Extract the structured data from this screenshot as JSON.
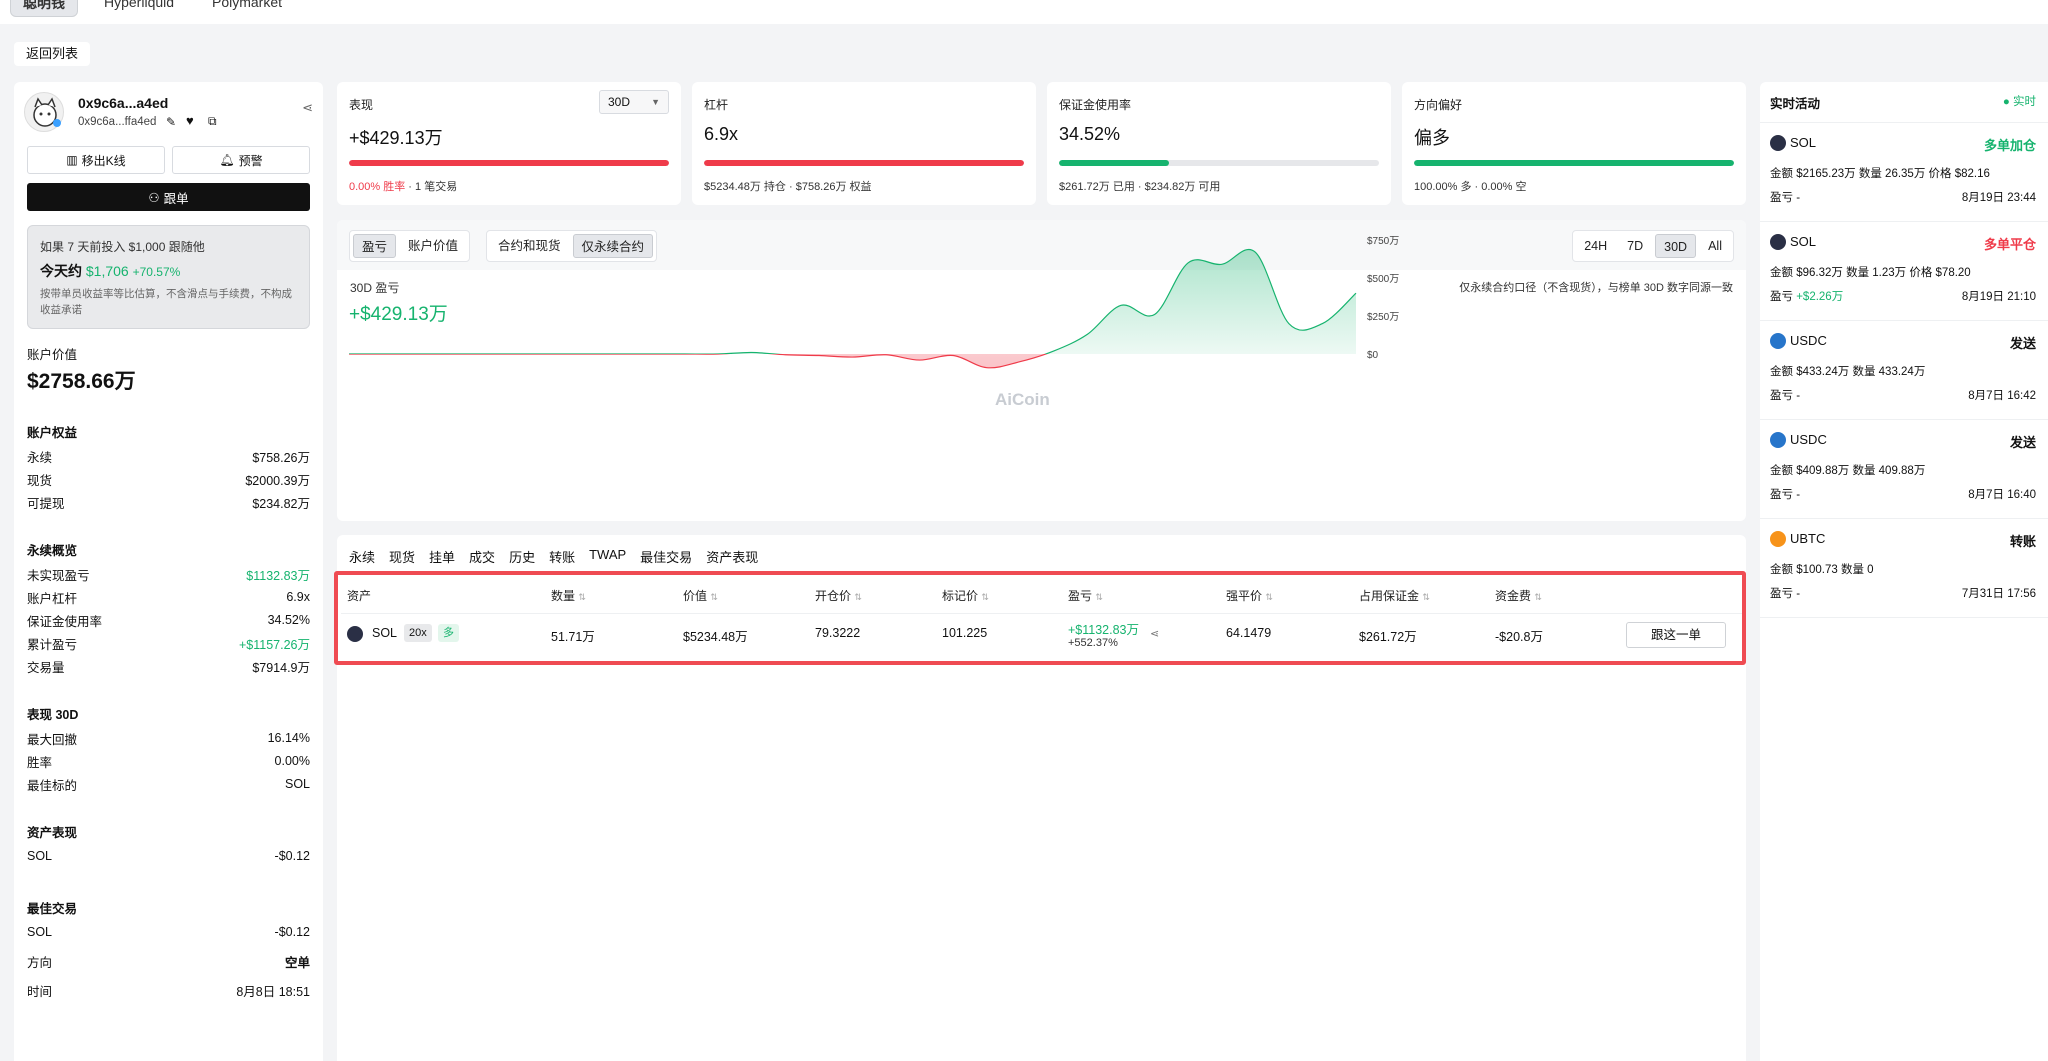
{
  "nav": {
    "tabs": [
      "聪明钱",
      "Hyperliquid",
      "Polymarket"
    ]
  },
  "back_label": "返回列表",
  "profile": {
    "name": "0x9c6a...a4ed",
    "address": "0x9c6a...ffa4ed",
    "remove_kline": "移出K线",
    "alert": "预警",
    "follow": "跟单"
  },
  "promo": {
    "line1": "如果 7 天前投入 $1,000 跟随他",
    "today_label": "今天约",
    "today_value": "$1,706",
    "today_pct": "+70.57%",
    "note": "按带单员收益率等比估算，不含滑点与手续费，不构成收益承诺"
  },
  "account": {
    "value_label": "账户价值",
    "value": "$2758.66万",
    "equity_title": "账户权益",
    "equity": [
      {
        "label": "永续",
        "value": "$758.26万"
      },
      {
        "label": "现货",
        "value": "$2000.39万"
      },
      {
        "label": "可提现",
        "value": "$234.82万"
      }
    ],
    "perp_title": "永续概览",
    "perp": [
      {
        "label": "未实现盈亏",
        "value": "$1132.83万"
      },
      {
        "label": "账户杠杆",
        "value": "6.9x"
      },
      {
        "label": "保证金使用率",
        "value": "34.52%"
      },
      {
        "label": "累计盈亏",
        "value": "+$1157.26万"
      },
      {
        "label": "交易量",
        "value": "$7914.9万"
      }
    ],
    "perf_title": "表现 30D",
    "perf": [
      {
        "label": "最大回撤",
        "value": "16.14%"
      },
      {
        "label": "胜率",
        "value": "0.00%"
      },
      {
        "label": "最佳标的",
        "value": "SOL"
      }
    ],
    "asset_title": "资产表现",
    "asset": [
      {
        "label": "SOL",
        "value": "-$0.12"
      }
    ],
    "best_title": "最佳交易",
    "best": [
      {
        "label": "SOL",
        "value": "-$0.12"
      },
      {
        "label": "方向",
        "value": "空单"
      },
      {
        "label": "时间",
        "value": "8月8日 18:51"
      }
    ]
  },
  "metrics": {
    "perf": {
      "title": "表现",
      "period": "30D",
      "value": "+$429.13万",
      "sub_red": "0.00% 胜率",
      "sub": " · 1 笔交易",
      "fill": 1.0,
      "color": "#ef3b4a"
    },
    "lev": {
      "title": "杠杆",
      "value": "6.9x",
      "sub": "$5234.48万 持仓 · $758.26万 权益",
      "fill": 1.0,
      "color": "#ef3b4a"
    },
    "margin": {
      "title": "保证金使用率",
      "value": "34.52%",
      "sub": "$261.72万 已用 · $234.82万 可用",
      "fill": 0.3452,
      "color": "#16b36e"
    },
    "dir": {
      "title": "方向偏好",
      "value": "偏多",
      "sub": "100.00% 多 · 0.00% 空",
      "fill": 1.0,
      "color": "#16b36e"
    }
  },
  "chart_panel": {
    "seg1": [
      "盈亏",
      "账户价值"
    ],
    "seg2": [
      "合约和现货",
      "仅永续合约"
    ],
    "ranges": [
      "24H",
      "7D",
      "30D",
      "All"
    ],
    "label": "30D 盈亏",
    "value": "+$429.13万",
    "note": "仅永续合约口径（不含现货），与榜单 30D 数字同源一致",
    "watermark": "AiCoin"
  },
  "chart_data": {
    "type": "area",
    "x": [
      0,
      1,
      2,
      3,
      4,
      5,
      6,
      7,
      8,
      9,
      10,
      11,
      12,
      13,
      14,
      15,
      16,
      17,
      18,
      19,
      20,
      21,
      22,
      23,
      24,
      25,
      26,
      27,
      28,
      29,
      30
    ],
    "values": [
      0,
      0,
      0,
      0,
      0,
      0,
      0,
      0,
      0,
      0,
      0,
      0,
      10,
      -5,
      -10,
      -20,
      -5,
      -40,
      -10,
      -90,
      -50,
      20,
      130,
      320,
      260,
      600,
      590,
      670,
      200,
      200,
      400
    ],
    "ylim": [
      -100,
      750
    ],
    "yticks": [
      "$750万",
      "$500万",
      "$250万",
      "$0"
    ],
    "positive_color": "#16b36e",
    "negative_color": "#ef3b4a"
  },
  "positions": {
    "tabs": [
      "永续",
      "现货",
      "挂单",
      "成交",
      "历史",
      "转账",
      "TWAP",
      "最佳交易",
      "资产表现"
    ],
    "headers": [
      "资产",
      "数量",
      "价值",
      "开仓价",
      "标记价",
      "盈亏",
      "强平价",
      "占用保证金",
      "资金费"
    ],
    "row": {
      "asset": "SOL",
      "lev": "20x",
      "side": "多",
      "qty": "51.71万",
      "value": "$5234.48万",
      "entry": "79.3222",
      "mark": "101.225",
      "pnl": "+$1132.83万",
      "pnl_pct": "+552.37%",
      "liq": "64.1479",
      "margin": "$261.72万",
      "funding": "-$20.8万",
      "action": "跟这一单"
    }
  },
  "activity": {
    "title": "实时活动",
    "live": "● 实时",
    "items": [
      {
        "coin": "SOL",
        "action": "多单加仓",
        "l1": "金额 $2165.23万  数量 26.35万  价格 $82.16",
        "pnl": "盈亏 -",
        "time": "8月19日 23:44",
        "color": "#16b36e",
        "icon": "#2a2f45"
      },
      {
        "coin": "SOL",
        "action": "多单平仓",
        "l1": "金额 $96.32万  数量 1.23万  价格 $78.20",
        "pnl": "盈亏 +$2.26万",
        "time": "8月19日 21:10",
        "color": "#ef3b4a",
        "icon": "#2a2f45"
      },
      {
        "coin": "USDC",
        "action": "发送",
        "l1": "金额 $433.24万  数量 433.24万",
        "pnl": "盈亏 -",
        "time": "8月7日 16:42",
        "color": "#111",
        "icon": "#2775ca"
      },
      {
        "coin": "USDC",
        "action": "发送",
        "l1": "金额 $409.88万  数量 409.88万",
        "pnl": "盈亏 -",
        "time": "8月7日 16:40",
        "color": "#111",
        "icon": "#2775ca"
      },
      {
        "coin": "UBTC",
        "action": "转账",
        "l1": "金额 $100.73  数量 0",
        "pnl": "盈亏 -",
        "time": "7月31日 17:56",
        "color": "#111",
        "icon": "#f7931a"
      }
    ]
  }
}
